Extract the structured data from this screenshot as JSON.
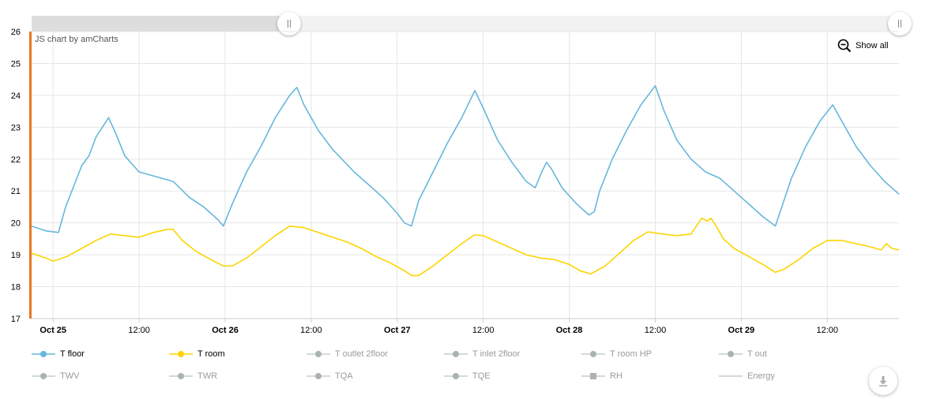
{
  "credit": "JS chart by amCharts",
  "show_all_label": "Show all",
  "chart_data": {
    "type": "line",
    "title": "",
    "xlabel": "",
    "ylabel": "",
    "ylim": [
      17,
      26
    ],
    "y_ticks": [
      "17",
      "18",
      "19",
      "20",
      "21",
      "22",
      "23",
      "24",
      "25",
      "26"
    ],
    "x_range": [
      "2024-10-24T21:00",
      "2024-10-29T22:00"
    ],
    "x_ticks": [
      {
        "t": "2024-10-25T00:00",
        "label": "Oct 25",
        "major": true
      },
      {
        "t": "2024-10-25T12:00",
        "label": "12:00",
        "major": false
      },
      {
        "t": "2024-10-26T00:00",
        "label": "Oct 26",
        "major": true
      },
      {
        "t": "2024-10-26T12:00",
        "label": "12:00",
        "major": false
      },
      {
        "t": "2024-10-27T00:00",
        "label": "Oct 27",
        "major": true
      },
      {
        "t": "2024-10-27T12:00",
        "label": "12:00",
        "major": false
      },
      {
        "t": "2024-10-28T00:00",
        "label": "Oct 28",
        "major": true
      },
      {
        "t": "2024-10-28T12:00",
        "label": "12:00",
        "major": false
      },
      {
        "t": "2024-10-29T00:00",
        "label": "Oct 29",
        "major": true
      },
      {
        "t": "2024-10-29T12:00",
        "label": "12:00",
        "major": false
      }
    ],
    "grid": true,
    "series": [
      {
        "name": "T floor",
        "color": "#67b7dc",
        "points": [
          [
            "2024-10-24T21:00",
            19.9
          ],
          [
            "2024-10-24T23:00",
            19.75
          ],
          [
            "2024-10-25T00:45",
            19.7
          ],
          [
            "2024-10-25T01:45",
            20.5
          ],
          [
            "2024-10-25T04:00",
            21.8
          ],
          [
            "2024-10-25T05:00",
            22.1
          ],
          [
            "2024-10-25T06:00",
            22.7
          ],
          [
            "2024-10-25T07:45",
            23.3
          ],
          [
            "2024-10-25T08:45",
            22.8
          ],
          [
            "2024-10-25T10:00",
            22.1
          ],
          [
            "2024-10-25T12:00",
            21.6
          ],
          [
            "2024-10-25T16:45",
            21.3
          ],
          [
            "2024-10-25T19:00",
            20.8
          ],
          [
            "2024-10-25T21:00",
            20.5
          ],
          [
            "2024-10-25T23:00",
            20.1
          ],
          [
            "2024-10-25T23:45",
            19.9
          ],
          [
            "2024-10-26T01:00",
            20.6
          ],
          [
            "2024-10-26T03:00",
            21.6
          ],
          [
            "2024-10-26T05:00",
            22.4
          ],
          [
            "2024-10-26T07:00",
            23.3
          ],
          [
            "2024-10-26T09:00",
            24.0
          ],
          [
            "2024-10-26T10:00",
            24.25
          ],
          [
            "2024-10-26T11:00",
            23.7
          ],
          [
            "2024-10-26T13:00",
            22.9
          ],
          [
            "2024-10-26T15:00",
            22.3
          ],
          [
            "2024-10-26T18:00",
            21.6
          ],
          [
            "2024-10-26T20:00",
            21.2
          ],
          [
            "2024-10-26T22:00",
            20.8
          ],
          [
            "2024-10-27T00:00",
            20.3
          ],
          [
            "2024-10-27T01:00",
            20.0
          ],
          [
            "2024-10-27T02:00",
            19.9
          ],
          [
            "2024-10-27T03:00",
            20.7
          ],
          [
            "2024-10-27T05:00",
            21.6
          ],
          [
            "2024-10-27T07:00",
            22.5
          ],
          [
            "2024-10-27T09:00",
            23.3
          ],
          [
            "2024-10-27T10:50",
            24.15
          ],
          [
            "2024-10-27T12:00",
            23.6
          ],
          [
            "2024-10-27T14:00",
            22.6
          ],
          [
            "2024-10-27T16:00",
            21.9
          ],
          [
            "2024-10-27T18:00",
            21.3
          ],
          [
            "2024-10-27T19:15",
            21.1
          ],
          [
            "2024-10-27T20:10",
            21.6
          ],
          [
            "2024-10-27T20:50",
            21.9
          ],
          [
            "2024-10-27T21:30",
            21.7
          ],
          [
            "2024-10-27T23:00",
            21.1
          ],
          [
            "2024-10-28T01:00",
            20.6
          ],
          [
            "2024-10-28T02:45",
            20.25
          ],
          [
            "2024-10-28T03:30",
            20.35
          ],
          [
            "2024-10-28T04:15",
            21.0
          ],
          [
            "2024-10-28T06:00",
            22.0
          ],
          [
            "2024-10-28T08:00",
            22.9
          ],
          [
            "2024-10-28T10:00",
            23.7
          ],
          [
            "2024-10-28T12:00",
            24.3
          ],
          [
            "2024-10-28T13:15",
            23.5
          ],
          [
            "2024-10-28T15:00",
            22.6
          ],
          [
            "2024-10-28T17:00",
            22.0
          ],
          [
            "2024-10-28T19:00",
            21.6
          ],
          [
            "2024-10-28T21:00",
            21.4
          ],
          [
            "2024-10-28T23:00",
            21.0
          ],
          [
            "2024-10-29T01:00",
            20.6
          ],
          [
            "2024-10-29T03:00",
            20.2
          ],
          [
            "2024-10-29T04:45",
            19.9
          ],
          [
            "2024-10-29T05:30",
            20.4
          ],
          [
            "2024-10-29T07:00",
            21.4
          ],
          [
            "2024-10-29T09:00",
            22.4
          ],
          [
            "2024-10-29T11:00",
            23.2
          ],
          [
            "2024-10-29T12:45",
            23.7
          ],
          [
            "2024-10-29T14:00",
            23.2
          ],
          [
            "2024-10-29T16:00",
            22.4
          ],
          [
            "2024-10-29T18:00",
            21.8
          ],
          [
            "2024-10-29T20:00",
            21.3
          ],
          [
            "2024-10-29T22:00",
            20.9
          ]
        ]
      },
      {
        "name": "T room",
        "color": "#fdd400",
        "points": [
          [
            "2024-10-24T21:00",
            19.05
          ],
          [
            "2024-10-24T23:00",
            18.9
          ],
          [
            "2024-10-25T00:00",
            18.8
          ],
          [
            "2024-10-25T02:00",
            18.95
          ],
          [
            "2024-10-25T04:00",
            19.2
          ],
          [
            "2024-10-25T06:00",
            19.45
          ],
          [
            "2024-10-25T08:00",
            19.65
          ],
          [
            "2024-10-25T10:00",
            19.6
          ],
          [
            "2024-10-25T12:00",
            19.55
          ],
          [
            "2024-10-25T14:00",
            19.7
          ],
          [
            "2024-10-25T16:00",
            19.8
          ],
          [
            "2024-10-25T16:45",
            19.8
          ],
          [
            "2024-10-25T18:00",
            19.45
          ],
          [
            "2024-10-25T20:00",
            19.1
          ],
          [
            "2024-10-25T22:00",
            18.85
          ],
          [
            "2024-10-25T23:45",
            18.65
          ],
          [
            "2024-10-26T01:00",
            18.65
          ],
          [
            "2024-10-26T03:00",
            18.9
          ],
          [
            "2024-10-26T05:00",
            19.25
          ],
          [
            "2024-10-26T07:00",
            19.6
          ],
          [
            "2024-10-26T09:00",
            19.9
          ],
          [
            "2024-10-26T11:00",
            19.85
          ],
          [
            "2024-10-26T13:00",
            19.7
          ],
          [
            "2024-10-26T15:00",
            19.55
          ],
          [
            "2024-10-26T17:00",
            19.4
          ],
          [
            "2024-10-26T19:00",
            19.2
          ],
          [
            "2024-10-26T21:00",
            18.95
          ],
          [
            "2024-10-26T23:00",
            18.75
          ],
          [
            "2024-10-27T01:00",
            18.5
          ],
          [
            "2024-10-27T02:00",
            18.35
          ],
          [
            "2024-10-27T03:00",
            18.35
          ],
          [
            "2024-10-27T05:00",
            18.65
          ],
          [
            "2024-10-27T07:00",
            19.0
          ],
          [
            "2024-10-27T09:00",
            19.35
          ],
          [
            "2024-10-27T10:45",
            19.62
          ],
          [
            "2024-10-27T12:00",
            19.6
          ],
          [
            "2024-10-27T14:00",
            19.4
          ],
          [
            "2024-10-27T16:00",
            19.2
          ],
          [
            "2024-10-27T18:00",
            19.0
          ],
          [
            "2024-10-27T20:00",
            18.9
          ],
          [
            "2024-10-27T22:00",
            18.85
          ],
          [
            "2024-10-28T00:00",
            18.7
          ],
          [
            "2024-10-28T01:30",
            18.5
          ],
          [
            "2024-10-28T03:00",
            18.4
          ],
          [
            "2024-10-28T05:00",
            18.65
          ],
          [
            "2024-10-28T07:00",
            19.05
          ],
          [
            "2024-10-28T09:00",
            19.45
          ],
          [
            "2024-10-28T11:00",
            19.72
          ],
          [
            "2024-10-28T13:00",
            19.65
          ],
          [
            "2024-10-28T15:00",
            19.6
          ],
          [
            "2024-10-28T17:00",
            19.65
          ],
          [
            "2024-10-28T17:45",
            19.9
          ],
          [
            "2024-10-28T18:30",
            20.15
          ],
          [
            "2024-10-28T19:15",
            20.05
          ],
          [
            "2024-10-28T19:45",
            20.15
          ],
          [
            "2024-10-28T20:30",
            19.9
          ],
          [
            "2024-10-28T21:30",
            19.5
          ],
          [
            "2024-10-28T23:00",
            19.2
          ],
          [
            "2024-10-29T01:00",
            18.95
          ],
          [
            "2024-10-29T03:00",
            18.7
          ],
          [
            "2024-10-29T04:45",
            18.45
          ],
          [
            "2024-10-29T06:00",
            18.55
          ],
          [
            "2024-10-29T08:00",
            18.85
          ],
          [
            "2024-10-29T10:00",
            19.2
          ],
          [
            "2024-10-29T12:00",
            19.45
          ],
          [
            "2024-10-29T14:00",
            19.45
          ],
          [
            "2024-10-29T16:00",
            19.35
          ],
          [
            "2024-10-29T18:00",
            19.25
          ],
          [
            "2024-10-29T19:30",
            19.15
          ],
          [
            "2024-10-29T20:15",
            19.35
          ],
          [
            "2024-10-29T21:00",
            19.2
          ],
          [
            "2024-10-29T22:00",
            19.15
          ]
        ]
      }
    ]
  },
  "legend": [
    {
      "label": "T floor",
      "color": "#67b7dc",
      "active": true,
      "marker": "circle"
    },
    {
      "label": "T room",
      "color": "#fdd400",
      "active": true,
      "marker": "circle"
    },
    {
      "label": "T outlet 2floor",
      "color": "#aab3b3",
      "active": false,
      "marker": "circle"
    },
    {
      "label": "T inlet 2floor",
      "color": "#aab3b3",
      "active": false,
      "marker": "circle"
    },
    {
      "label": "T room HP",
      "color": "#aab3b3",
      "active": false,
      "marker": "circle"
    },
    {
      "label": "T out",
      "color": "#aab3b3",
      "active": false,
      "marker": "circle"
    },
    {
      "label": "TWV",
      "color": "#aab3b3",
      "active": false,
      "marker": "circle"
    },
    {
      "label": "TWR",
      "color": "#aab3b3",
      "active": false,
      "marker": "circle"
    },
    {
      "label": "TQA",
      "color": "#aab3b3",
      "active": false,
      "marker": "circle"
    },
    {
      "label": "TQE",
      "color": "#aab3b3",
      "active": false,
      "marker": "circle"
    },
    {
      "label": "RH",
      "color": "#aab3b3",
      "active": false,
      "marker": "square"
    },
    {
      "label": "Energy",
      "color": "#aab3b3",
      "active": false,
      "marker": "none"
    }
  ],
  "icons": {
    "zoom_out": "zoom-out-icon",
    "download": "download-icon"
  },
  "accent_color": "#e87722"
}
